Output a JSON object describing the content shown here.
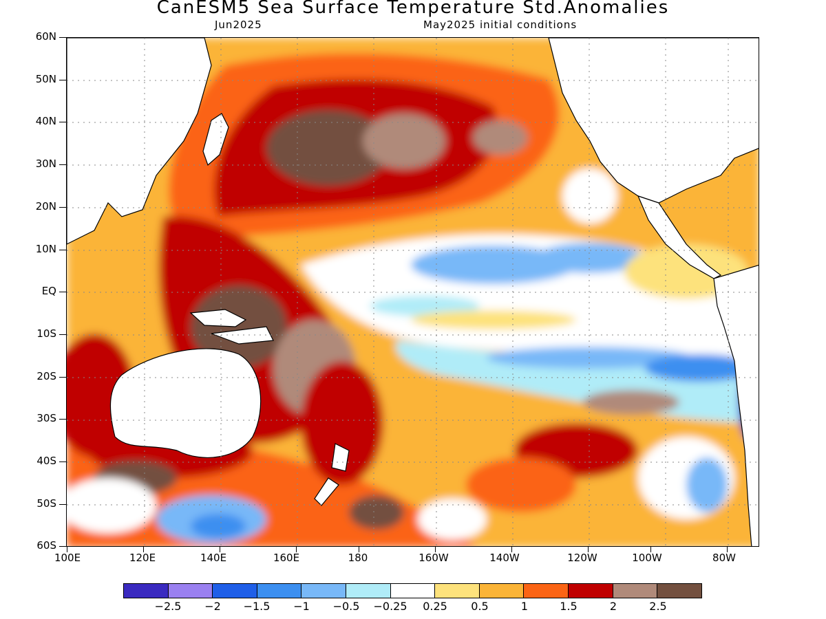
{
  "title": "CanESM5 Sea Surface Temperature Std.Anomalies",
  "subtitle_left": "Jun2025",
  "subtitle_right": "May2025 initial conditions",
  "y_axis_labels": [
    "60N",
    "50N",
    "40N",
    "30N",
    "20N",
    "10N",
    "EQ",
    "10S",
    "20S",
    "30S",
    "40S",
    "50S",
    "60S"
  ],
  "x_axis_labels": [
    "100E",
    "120E",
    "140E",
    "160E",
    "180",
    "160W",
    "140W",
    "120W",
    "100W",
    "80W"
  ],
  "colorbar": {
    "colors": [
      "#3a2ac0",
      "#9a80f0",
      "#1f5fe8",
      "#3c8ff0",
      "#78b8f8",
      "#b0ecf8",
      "#ffffff",
      "#fde27c",
      "#fbb437",
      "#fb6414",
      "#c00000",
      "#b08a7a",
      "#73503f"
    ],
    "labels": [
      "−2.5",
      "−2",
      "−1.5",
      "−1",
      "−0.5",
      "−0.25",
      "0.25",
      "0.5",
      "1",
      "1.5",
      "2",
      "2.5"
    ]
  }
}
